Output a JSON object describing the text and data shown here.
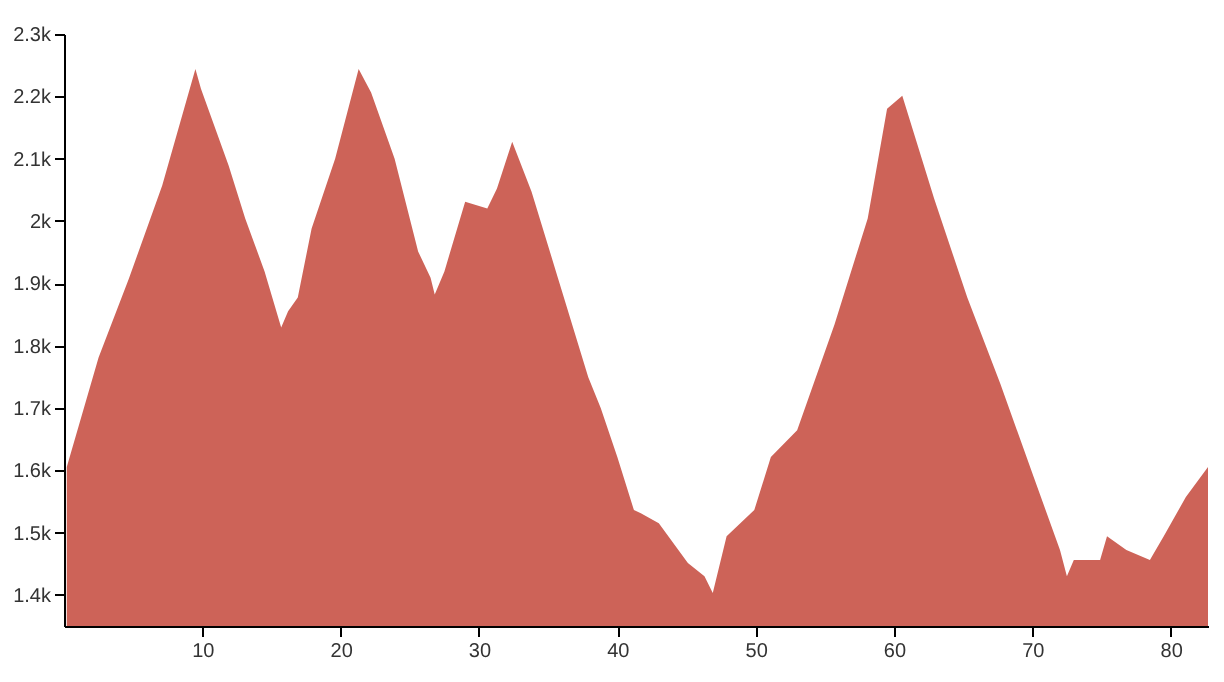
{
  "chart_data": {
    "type": "area",
    "x": [
      0.2,
      2.5,
      4.7,
      7.1,
      9.5,
      9.9,
      11.9,
      13.1,
      14.5,
      15.7,
      16.2,
      16.9,
      17.9,
      19.6,
      21.3,
      22.2,
      23.9,
      25.6,
      26.5,
      26.8,
      27.5,
      29.0,
      30.6,
      31.3,
      32.4,
      33.8,
      35.7,
      37.9,
      38.8,
      40.0,
      41.2,
      41.7,
      43.0,
      45.1,
      46.3,
      46.9,
      47.9,
      49.9,
      51.1,
      53.0,
      55.7,
      58.1,
      59.5,
      60.6,
      62.9,
      65.3,
      67.7,
      70.1,
      72.0,
      72.5,
      73.0,
      74.9,
      75.4,
      76.8,
      78.5,
      79.5,
      81.1,
      82.7
    ],
    "series": [
      {
        "color": "#cd6358",
        "values": [
          1605,
          1781,
          1908,
          2057,
          2244,
          2212,
          2089,
          2004,
          1919,
          1829,
          1855,
          1877,
          1988,
          2100,
          2244,
          2206,
          2100,
          1951,
          1909,
          1882,
          1919,
          2031,
          2020,
          2052,
          2127,
          2047,
          1909,
          1749,
          1700,
          1621,
          1536,
          1531,
          1515,
          1451,
          1430,
          1403,
          1494,
          1536,
          1621,
          1664,
          1834,
          2004,
          2180,
          2201,
          2036,
          1877,
          1738,
          1589,
          1472,
          1430,
          1456,
          1456,
          1494,
          1472,
          1456,
          1494,
          1557,
          1605
        ]
      }
    ],
    "xlim": [
      0,
      82.7
    ],
    "xticks": [
      10,
      20,
      30,
      40,
      50,
      60,
      70,
      80
    ],
    "ylim": [
      1350,
      2300
    ],
    "yticks": [
      {
        "value": 1400,
        "label": "1.4k"
      },
      {
        "value": 1500,
        "label": "1.5k"
      },
      {
        "value": 1600,
        "label": "1.6k"
      },
      {
        "value": 1700,
        "label": "1.7k"
      },
      {
        "value": 1800,
        "label": "1.8k"
      },
      {
        "value": 1900,
        "label": "1.9k"
      },
      {
        "value": 2000,
        "label": "2k"
      },
      {
        "value": 2100,
        "label": "2.1k"
      },
      {
        "value": 2200,
        "label": "2.2k"
      },
      {
        "value": 2300,
        "label": "2.3k"
      }
    ],
    "grid": false
  }
}
